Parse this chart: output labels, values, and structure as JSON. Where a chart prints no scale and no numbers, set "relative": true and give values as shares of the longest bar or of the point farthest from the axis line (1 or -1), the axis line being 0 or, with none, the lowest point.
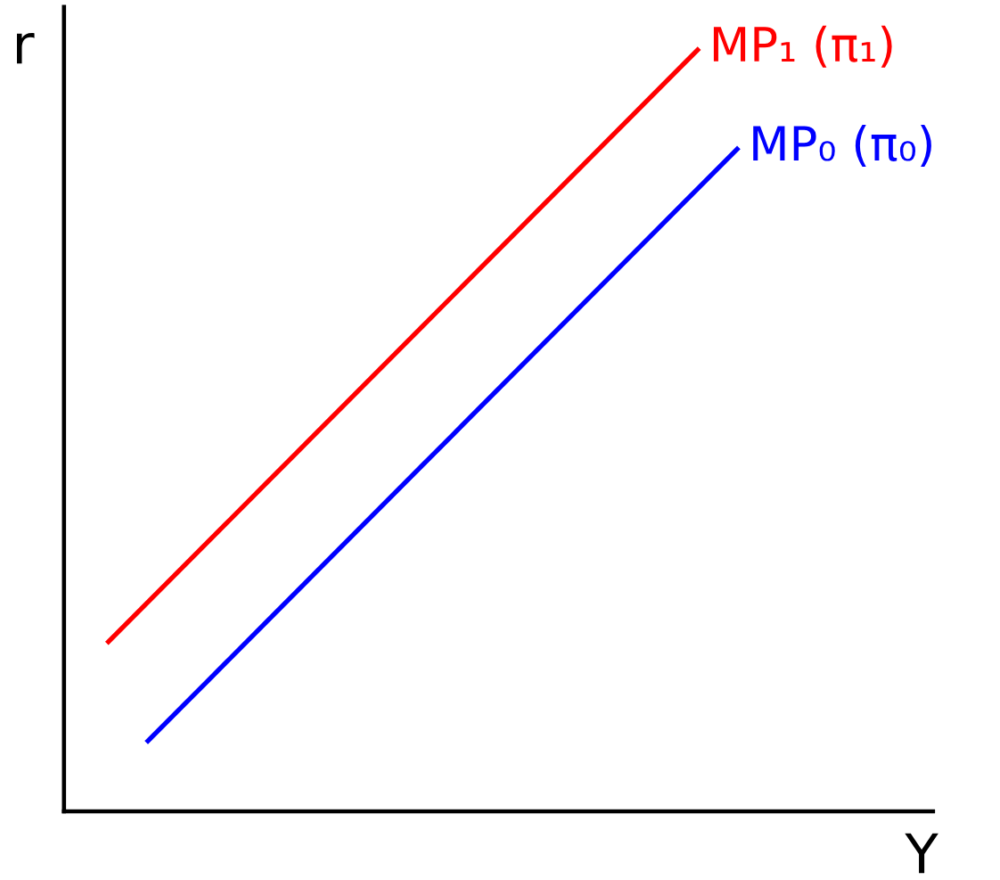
{
  "chart_data": {
    "type": "line",
    "relative": true,
    "xlabel": "Y",
    "ylabel": "r",
    "legend": false,
    "marker": "none",
    "line_style": "solid",
    "categories": [
      null,
      null,
      null,
      null,
      null,
      null,
      null,
      null,
      null,
      null,
      null,
      null,
      null,
      null,
      null,
      null,
      null
    ],
    "series": [
      {
        "name": "MP₁ (π₁)",
        "color": "#ff0000",
        "values": [
          0.22,
          0.272,
          0.324,
          0.376,
          0.428,
          0.48,
          0.532,
          0.584,
          0.636,
          0.688,
          0.74,
          0.792,
          0.844,
          0.896,
          0.948,
          1.0,
          null
        ]
      },
      {
        "name": "MP₀ (π₀)",
        "color": "#0000ff",
        "values": [
          null,
          0.09,
          0.142,
          0.194,
          0.246,
          0.298,
          0.35,
          0.402,
          0.454,
          0.506,
          0.558,
          0.61,
          0.662,
          0.714,
          0.766,
          0.818,
          0.87
        ]
      }
    ]
  }
}
